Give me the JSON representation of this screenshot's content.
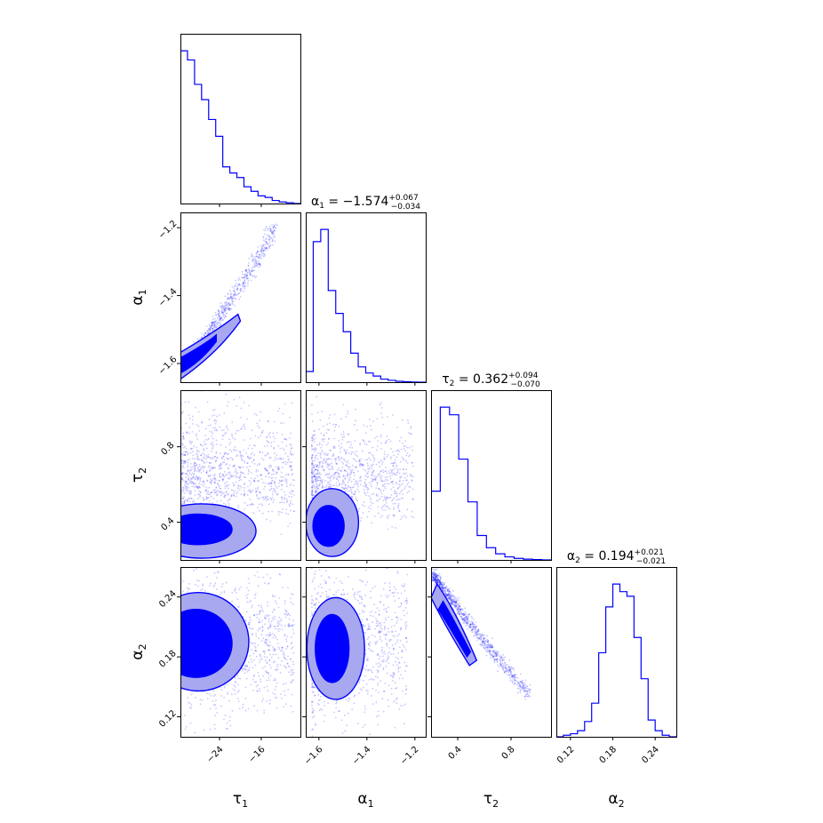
{
  "chart_data": {
    "type": "corner",
    "parameters": [
      {
        "key": "tau1",
        "label": "τ₁",
        "sym": "τ",
        "sub": "1",
        "range": [
          -31.5,
          -8.5
        ],
        "ticks": [
          -24,
          -16
        ]
      },
      {
        "key": "alpha1",
        "label": "α₁",
        "sym": "α",
        "sub": "1",
        "range": [
          -1.655,
          -1.155
        ],
        "ticks": [
          -1.6,
          -1.4,
          -1.2
        ]
      },
      {
        "key": "tau2",
        "label": "τ₂",
        "sym": "τ",
        "sub": "2",
        "range": [
          0.2,
          1.1
        ],
        "ticks": [
          0.4,
          0.8
        ]
      },
      {
        "key": "alpha2",
        "label": "α₂",
        "sym": "α",
        "sub": "2",
        "range": [
          0.1,
          0.27
        ],
        "ticks": [
          0.12,
          0.18,
          0.24
        ]
      }
    ],
    "tick_labels": {
      "tau1": [
        "−24",
        "−16"
      ],
      "alpha1": [
        "−1.6",
        "−1.4",
        "−1.2"
      ],
      "tau2": [
        "0.4",
        "0.8"
      ],
      "alpha2": [
        "0.12",
        "0.18",
        "0.24"
      ]
    },
    "titles": {
      "alpha1": {
        "prefix": "α",
        "sub": "1",
        "value": " = −1.574",
        "plus": "+0.067",
        "minus": "−0.034"
      },
      "tau2": {
        "prefix": "τ",
        "sub": "2",
        "value": " = 0.362",
        "plus": "+0.094",
        "minus": "−0.070"
      },
      "alpha2": {
        "prefix": "α",
        "sub": "2",
        "value": " = 0.194",
        "plus": "+0.021",
        "minus": "−0.021"
      }
    },
    "histograms": {
      "tau1": [
        1.0,
        0.94,
        0.78,
        0.68,
        0.55,
        0.44,
        0.24,
        0.2,
        0.17,
        0.11,
        0.08,
        0.05,
        0.04,
        0.02,
        0.01,
        0.005,
        0.0
      ],
      "alpha1": [
        0.07,
        0.92,
        1.0,
        0.6,
        0.45,
        0.33,
        0.19,
        0.1,
        0.06,
        0.04,
        0.02,
        0.012,
        0.006,
        0.003,
        0.001,
        0.0
      ],
      "tau2": [
        0.45,
        1.0,
        0.95,
        0.66,
        0.38,
        0.16,
        0.08,
        0.04,
        0.02,
        0.01,
        0.005,
        0.002,
        0.0
      ],
      "alpha2": [
        0.0,
        0.01,
        0.02,
        0.04,
        0.1,
        0.22,
        0.55,
        0.85,
        1.0,
        0.95,
        0.92,
        0.65,
        0.38,
        0.11,
        0.04,
        0.01,
        0.0
      ]
    },
    "color": "#0000ff",
    "fill_light": "#a8a8f0",
    "grid": false
  }
}
